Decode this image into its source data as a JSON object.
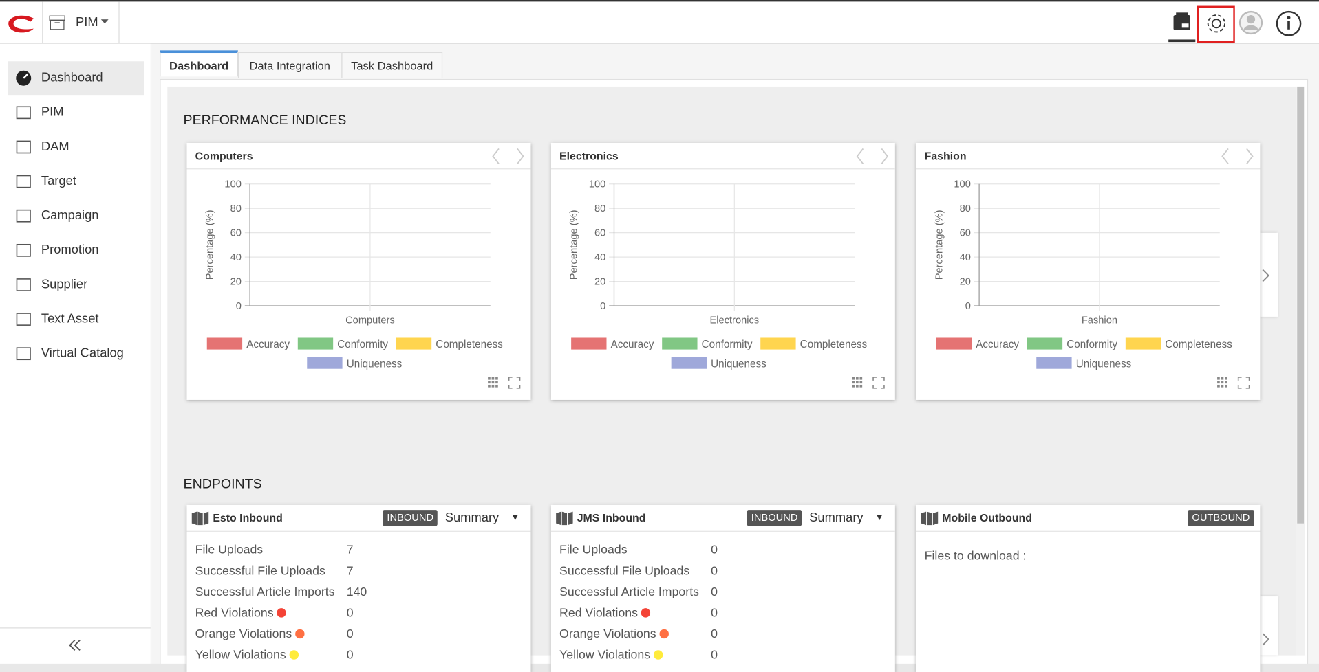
{
  "header": {
    "app": "PIM"
  },
  "sidebar": [
    "Dashboard",
    "PIM",
    "DAM",
    "Target",
    "Campaign",
    "Promotion",
    "Supplier",
    "Text Asset",
    "Virtual Catalog"
  ],
  "tabs": [
    "Dashboard",
    "Data Integration",
    "Task Dashboard"
  ],
  "performance": {
    "title": "PERFORMANCE INDICES",
    "y_label": "Percentage (%)",
    "ylim": [
      0,
      100
    ],
    "yticks": [
      0,
      20,
      40,
      60,
      80,
      100
    ],
    "legend": [
      {
        "name": "Accuracy",
        "color": "#e57373"
      },
      {
        "name": "Conformity",
        "color": "#81c784"
      },
      {
        "name": "Completeness",
        "color": "#ffd54f"
      },
      {
        "name": "Uniqueness",
        "color": "#9fa8da"
      }
    ],
    "charts": [
      {
        "title": "Computers",
        "category": "Computers"
      },
      {
        "title": "Electronics",
        "category": "Electronics"
      },
      {
        "title": "Fashion",
        "category": "Fashion"
      }
    ]
  },
  "endpoints": {
    "title": "ENDPOINTS",
    "cards": [
      {
        "title": "Esto Inbound",
        "badge": "INBOUND",
        "select": "Summary",
        "rows": [
          {
            "label": "File Uploads",
            "value": 7
          },
          {
            "label": "Successful File Uploads",
            "value": 7
          },
          {
            "label": "Successful Article Imports",
            "value": 140
          },
          {
            "label": "Red Violations",
            "value": 0,
            "dot": "#f44336"
          },
          {
            "label": "Orange Violations",
            "value": 0,
            "dot": "#ff7043"
          },
          {
            "label": "Yellow Violations",
            "value": 0,
            "dot": "#ffeb3b"
          }
        ]
      },
      {
        "title": "JMS Inbound",
        "badge": "INBOUND",
        "select": "Summary",
        "rows": [
          {
            "label": "File Uploads",
            "value": 0
          },
          {
            "label": "Successful File Uploads",
            "value": 0
          },
          {
            "label": "Successful Article Imports",
            "value": 0
          },
          {
            "label": "Red Violations",
            "value": 0,
            "dot": "#f44336"
          },
          {
            "label": "Orange Violations",
            "value": 0,
            "dot": "#ff7043"
          },
          {
            "label": "Yellow Violations",
            "value": 0,
            "dot": "#ffeb3b"
          }
        ]
      },
      {
        "title": "Mobile Outbound",
        "badge": "OUTBOUND",
        "note": "Files to download :"
      }
    ]
  }
}
